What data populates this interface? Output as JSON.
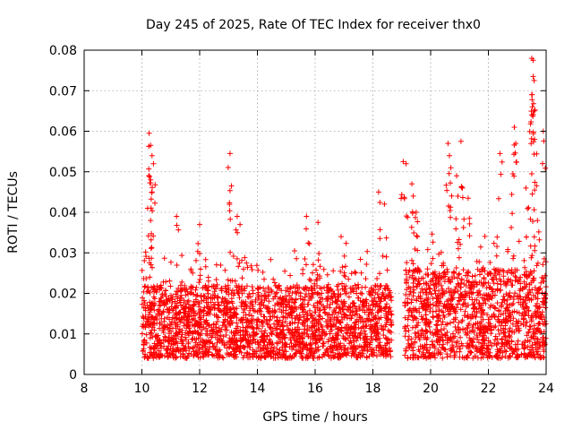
{
  "chart_data": {
    "type": "scatter",
    "title": "Day 245 of 2025, Rate Of TEC Index for receiver thx0",
    "xlabel": "GPS time / hours",
    "ylabel": "ROTI / TECUs",
    "xlim": [
      8,
      24
    ],
    "ylim": [
      0,
      0.08
    ],
    "xticks": [
      8,
      10,
      12,
      14,
      16,
      18,
      20,
      22,
      24
    ],
    "xtick_labels": [
      "8",
      "10",
      "12",
      "14",
      "16",
      "18",
      "20",
      "22",
      "24"
    ],
    "yticks": [
      0,
      0.01,
      0.02,
      0.03,
      0.04,
      0.05,
      0.06,
      0.07,
      0.08
    ],
    "ytick_labels": [
      "0",
      "0.01",
      "0.02",
      "0.03",
      "0.04",
      "0.05",
      "0.06",
      "0.07",
      "0.08"
    ],
    "grid": true,
    "marker": "+",
    "color": "#ff0000",
    "series": [
      {
        "name": "ROTI",
        "data_segments": [
          {
            "x_start": 10.0,
            "x_end": 18.65,
            "base_min": 0.004,
            "base_max": 0.022
          },
          {
            "x_start": 19.1,
            "x_end": 24.0,
            "base_min": 0.004,
            "base_max": 0.026
          }
        ],
        "notable_points": [
          {
            "x": 10.25,
            "y": 0.0595
          },
          {
            "x": 10.3,
            "y": 0.0565
          },
          {
            "x": 10.35,
            "y": 0.054
          },
          {
            "x": 10.4,
            "y": 0.052
          },
          {
            "x": 10.3,
            "y": 0.048
          },
          {
            "x": 10.35,
            "y": 0.045
          },
          {
            "x": 10.2,
            "y": 0.041
          },
          {
            "x": 10.3,
            "y": 0.038
          },
          {
            "x": 11.2,
            "y": 0.039
          },
          {
            "x": 12.0,
            "y": 0.037
          },
          {
            "x": 13.05,
            "y": 0.0545
          },
          {
            "x": 13.1,
            "y": 0.0465
          },
          {
            "x": 13.3,
            "y": 0.039
          },
          {
            "x": 13.4,
            "y": 0.037
          },
          {
            "x": 15.7,
            "y": 0.039
          },
          {
            "x": 16.1,
            "y": 0.0375
          },
          {
            "x": 16.9,
            "y": 0.034
          },
          {
            "x": 18.2,
            "y": 0.045
          },
          {
            "x": 18.4,
            "y": 0.042
          },
          {
            "x": 19.05,
            "y": 0.0525
          },
          {
            "x": 19.15,
            "y": 0.052
          },
          {
            "x": 19.35,
            "y": 0.047
          },
          {
            "x": 19.4,
            "y": 0.044
          },
          {
            "x": 19.5,
            "y": 0.04
          },
          {
            "x": 20.6,
            "y": 0.057
          },
          {
            "x": 20.65,
            "y": 0.054
          },
          {
            "x": 20.7,
            "y": 0.051
          },
          {
            "x": 21.05,
            "y": 0.0575
          },
          {
            "x": 20.9,
            "y": 0.049
          },
          {
            "x": 21.1,
            "y": 0.046
          },
          {
            "x": 21.3,
            "y": 0.0435
          },
          {
            "x": 22.4,
            "y": 0.0545
          },
          {
            "x": 22.9,
            "y": 0.061
          },
          {
            "x": 22.95,
            "y": 0.057
          },
          {
            "x": 22.85,
            "y": 0.0495
          },
          {
            "x": 23.3,
            "y": 0.046
          },
          {
            "x": 23.5,
            "y": 0.078
          },
          {
            "x": 23.55,
            "y": 0.0775
          },
          {
            "x": 23.55,
            "y": 0.0735
          },
          {
            "x": 23.5,
            "y": 0.069
          },
          {
            "x": 23.52,
            "y": 0.066
          },
          {
            "x": 23.58,
            "y": 0.065
          },
          {
            "x": 23.6,
            "y": 0.058
          },
          {
            "x": 23.9,
            "y": 0.06
          },
          {
            "x": 23.5,
            "y": 0.0495
          },
          {
            "x": 23.6,
            "y": 0.0455
          },
          {
            "x": 23.7,
            "y": 0.038
          }
        ]
      }
    ]
  }
}
